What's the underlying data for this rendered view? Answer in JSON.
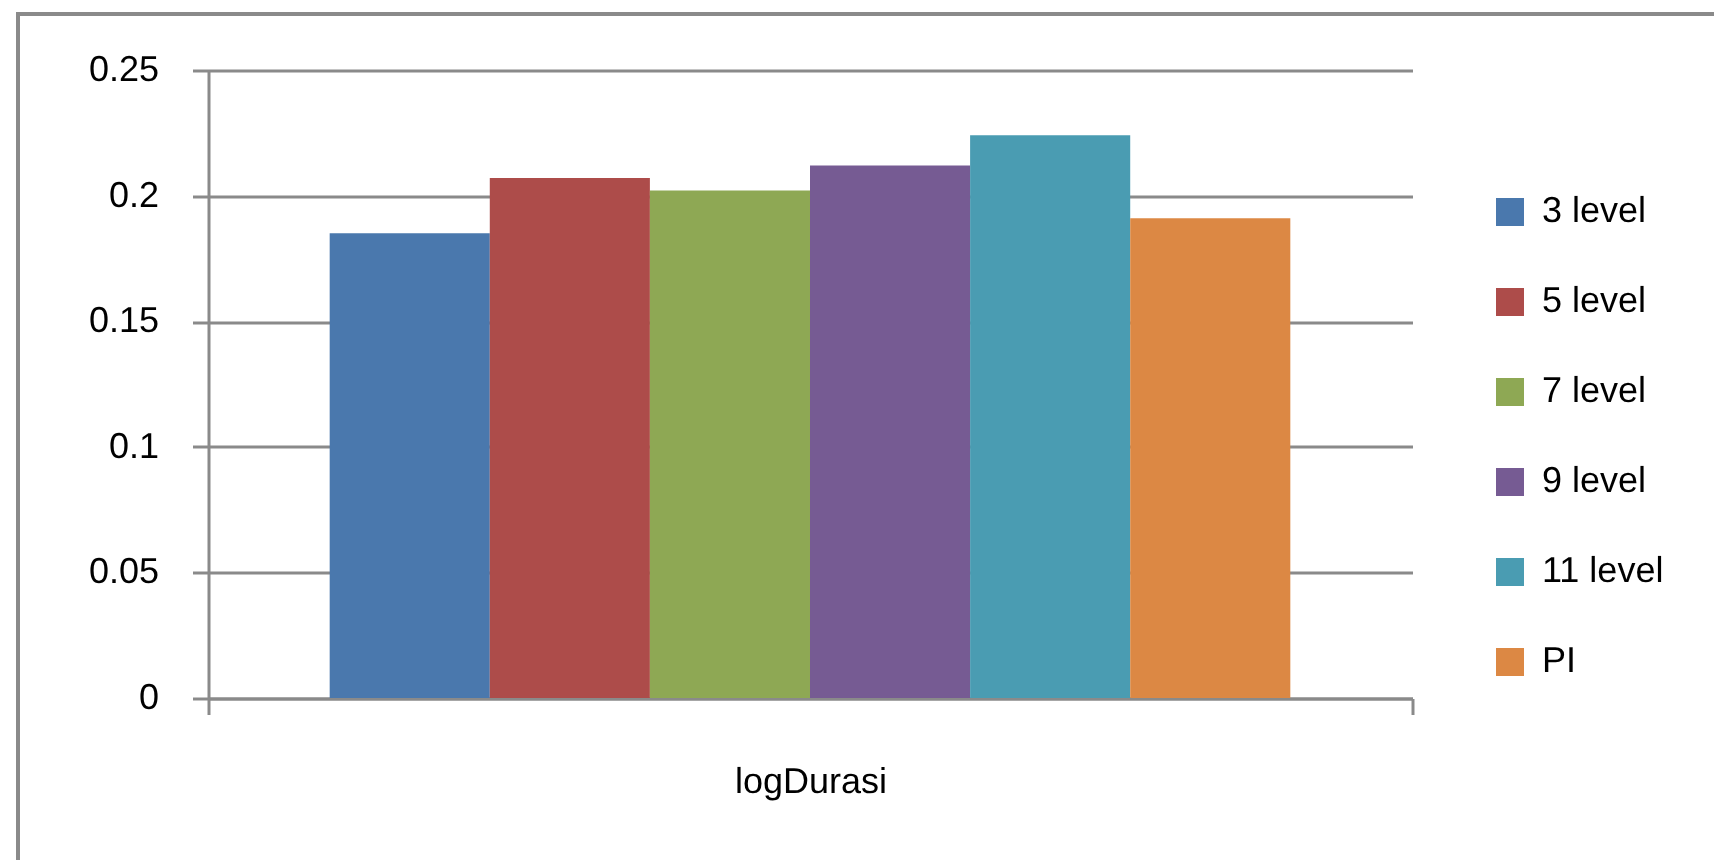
{
  "chart_data": {
    "type": "bar",
    "categories": [
      "logDurasi"
    ],
    "series": [
      {
        "name": "3 level",
        "color": "#4a78ad",
        "values": [
          0.185
        ]
      },
      {
        "name": "5 level",
        "color": "#ad4c4a",
        "values": [
          0.207
        ]
      },
      {
        "name": "7 level",
        "color": "#8ea854",
        "values": [
          0.202
        ]
      },
      {
        "name": "9 level",
        "color": "#765b93",
        "values": [
          0.212
        ]
      },
      {
        "name": "11 level",
        "color": "#4a9cb2",
        "values": [
          0.224
        ]
      },
      {
        "name": "PI",
        "color": "#dc8844",
        "values": [
          0.191
        ]
      }
    ],
    "ylim": [
      0,
      0.25
    ],
    "yticks": [
      0,
      0.05,
      0.1,
      0.15,
      0.2,
      0.25
    ],
    "grid": "y",
    "legend": "right"
  }
}
